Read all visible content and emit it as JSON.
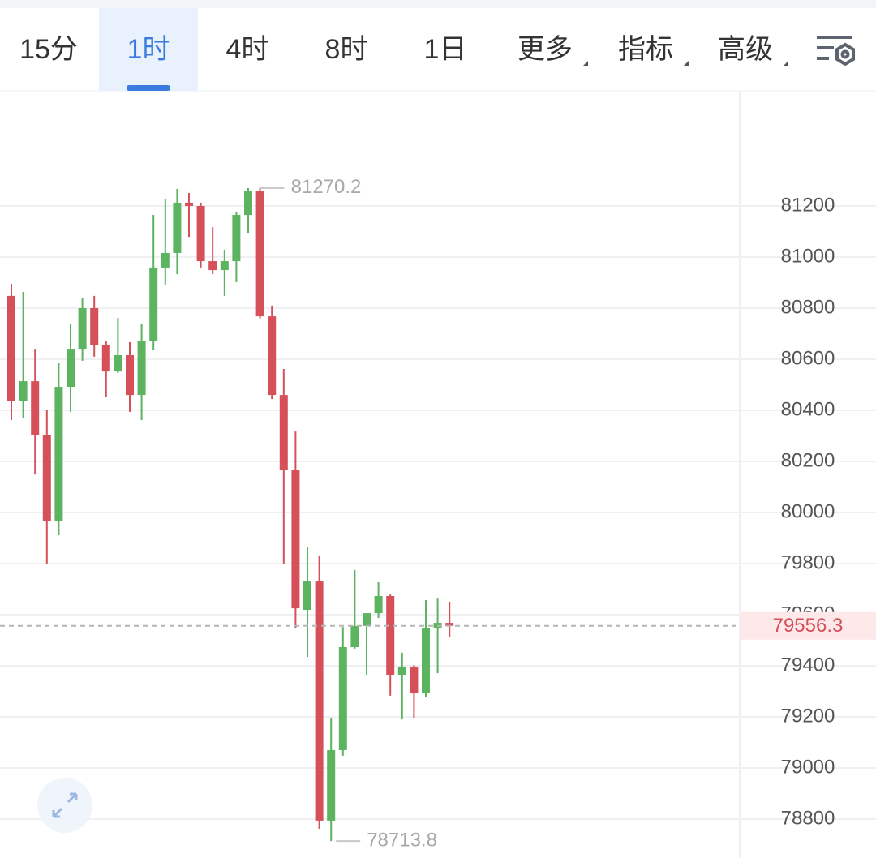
{
  "tabs": [
    {
      "label": "15分",
      "dropdown": false
    },
    {
      "label": "1时",
      "dropdown": false
    },
    {
      "label": "4时",
      "dropdown": false
    },
    {
      "label": "8时",
      "dropdown": false
    },
    {
      "label": "1日",
      "dropdown": false
    },
    {
      "label": "更多",
      "dropdown": true
    },
    {
      "label": "指标",
      "dropdown": true
    },
    {
      "label": "高级",
      "dropdown": true
    }
  ],
  "selected_tab": 1,
  "chart_data": {
    "type": "candlestick",
    "up_color": "#5cb360",
    "down_color": "#d6505a",
    "ylim": [
      78647.6,
      81650.8
    ],
    "yticks": [
      78800,
      79000,
      79200,
      79400,
      79600,
      79800,
      80000,
      80200,
      80400,
      80600,
      80800,
      81000,
      81200
    ],
    "grid": true,
    "open": [
      80848,
      80435,
      80514,
      80302,
      79968,
      80492,
      80641,
      80800,
      80657,
      80552,
      80616,
      80460,
      80673,
      80959,
      81016,
      81213,
      81200,
      80984,
      80949,
      80984,
      81165,
      81257,
      80768,
      80460,
      80165,
      79619,
      79730,
      78794,
      79070,
      79473,
      79556,
      79606,
      79673,
      79365,
      79397,
      79292,
      79546,
      79568
    ],
    "high": [
      80895,
      80863,
      80641,
      80403,
      80587,
      80737,
      80838,
      80848,
      80673,
      80762,
      80667,
      80737,
      81165,
      81229,
      81267,
      81251,
      81213,
      81117,
      81029,
      81175,
      81270,
      81270.2,
      80810,
      80562,
      80317,
      79863,
      79832,
      79197,
      79552,
      79775,
      79581,
      79727,
      79679,
      79451,
      79403,
      79657,
      79663,
      79651
    ],
    "low": [
      80362,
      80371,
      80149,
      79800,
      79911,
      80394,
      80594,
      80610,
      80451,
      80546,
      80394,
      80362,
      80635,
      80889,
      80933,
      81079,
      80959,
      80933,
      80848,
      80902,
      81095,
      80760,
      80444,
      79800,
      79546,
      79435,
      78762,
      78713.8,
      79048,
      79467,
      79365,
      79587,
      79283,
      79190,
      79197,
      79276,
      79371,
      79514
    ],
    "close": [
      80435,
      80514,
      80302,
      79968,
      80492,
      80641,
      80800,
      80657,
      80552,
      80616,
      80460,
      80673,
      80959,
      81016,
      81213,
      81200,
      80984,
      80949,
      80984,
      81165,
      81257,
      80768,
      80460,
      80165,
      79625,
      79730,
      78794,
      79070,
      79473,
      79556,
      79606,
      79673,
      79365,
      79397,
      79292,
      79546,
      79568,
      79556.3
    ],
    "max_label": {
      "label": "81270.2",
      "value": 81270.2
    },
    "min_label": {
      "label": "78713.8",
      "value": 78713.8
    },
    "last_price": {
      "label": "79556.3",
      "value": 79556.3
    }
  }
}
